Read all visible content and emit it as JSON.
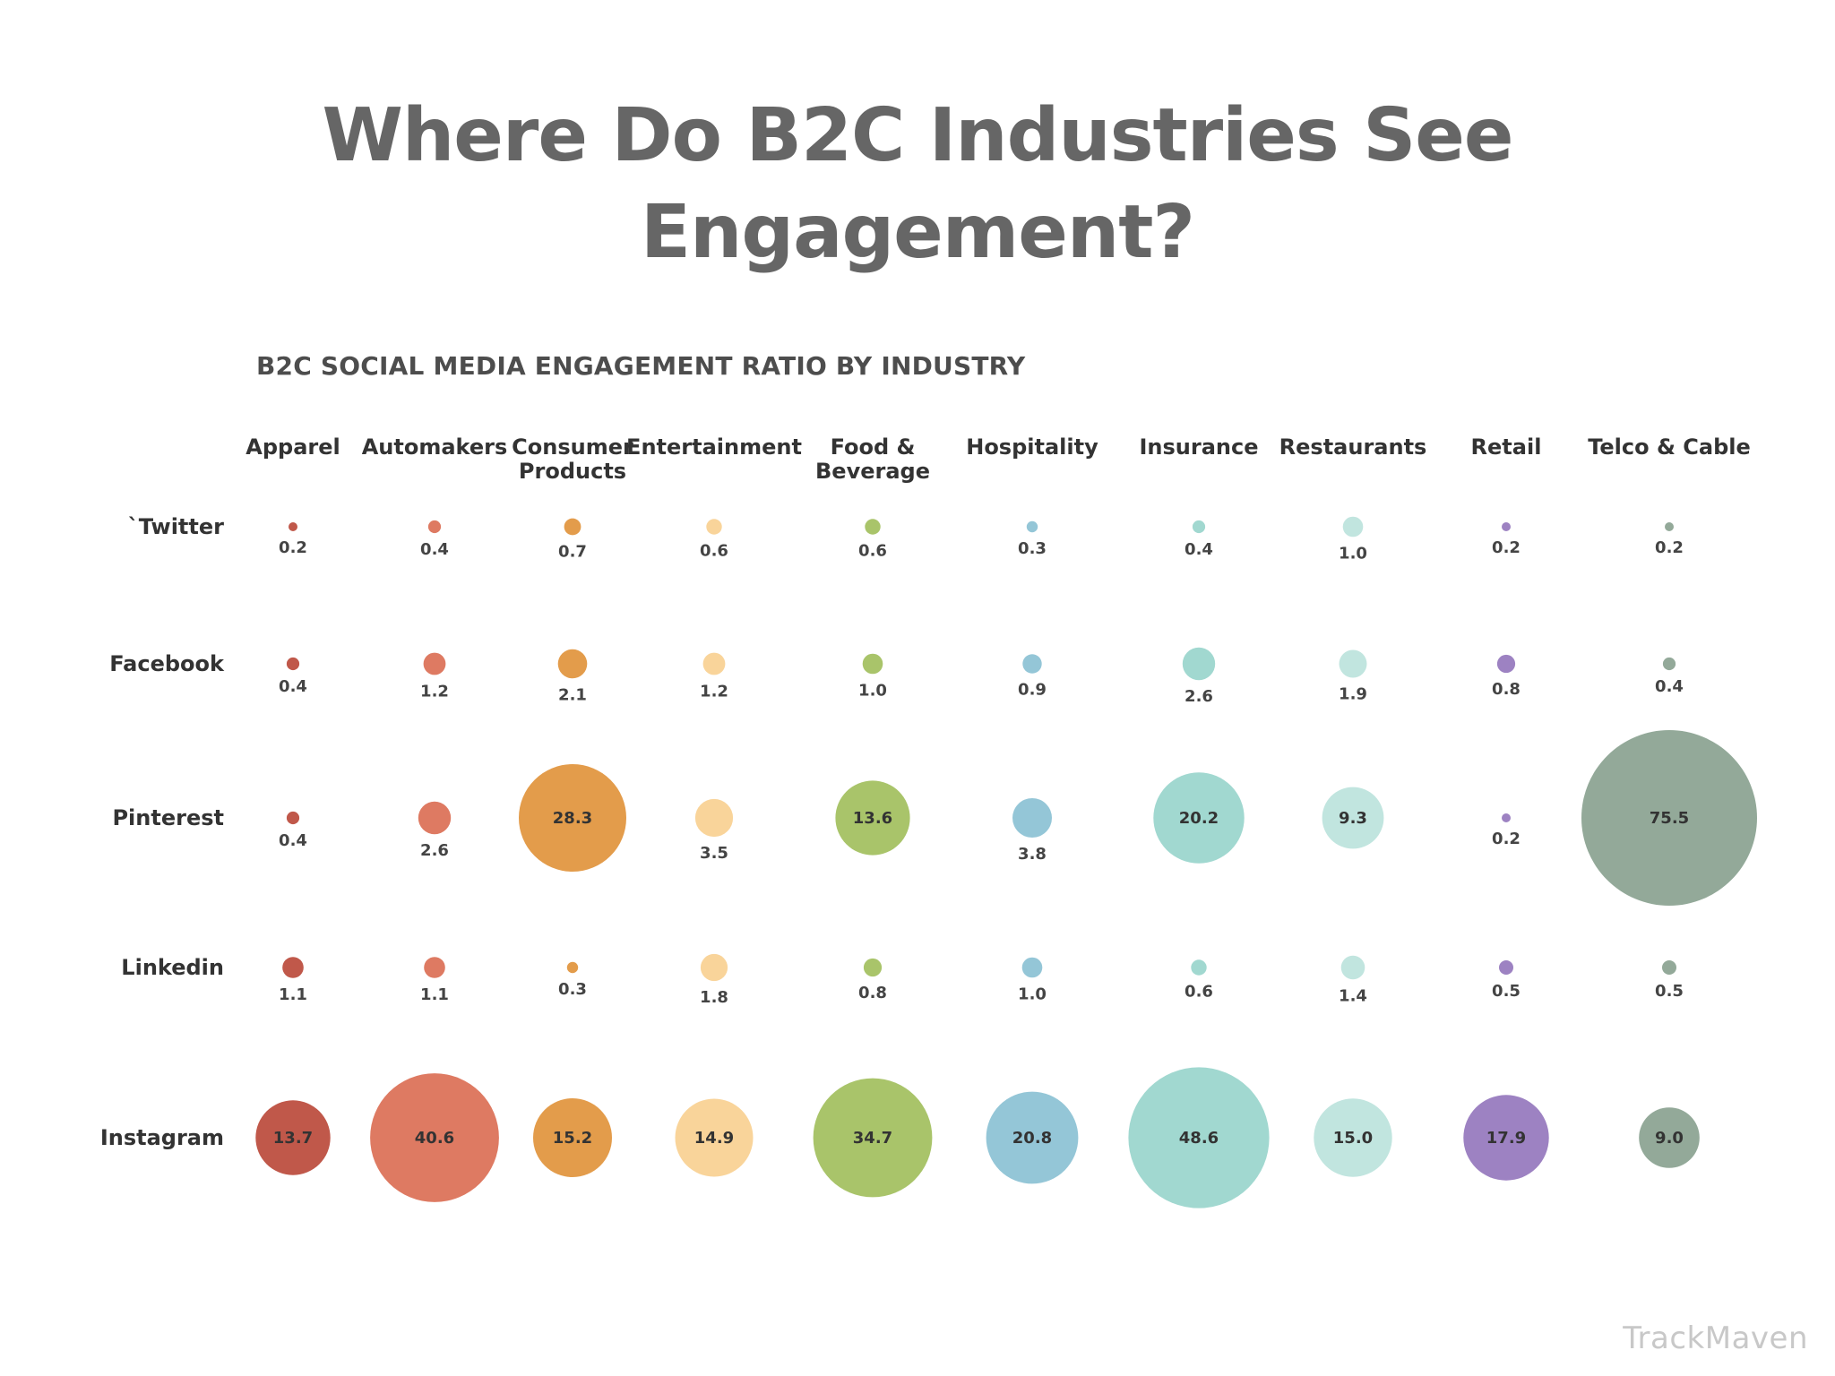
{
  "page": {
    "title_line1": "Where Do B2C Industries See",
    "title_line2": "Engagement?",
    "watermark": "TrackMaven"
  },
  "chart_data": {
    "type": "bubble-matrix",
    "title": "B2C SOCIAL MEDIA ENGAGEMENT RATIO BY INDUSTRY",
    "categories": [
      {
        "name": "Apparel",
        "lines": [
          "Apparel"
        ],
        "color": "#c0584a"
      },
      {
        "name": "Automakers",
        "lines": [
          "Automakers"
        ],
        "color": "#de7a62"
      },
      {
        "name": "Consumer Products",
        "lines": [
          "Consumer",
          "Products"
        ],
        "color": "#e39c4b"
      },
      {
        "name": "Entertainment",
        "lines": [
          "Entertainment"
        ],
        "color": "#f9d49a"
      },
      {
        "name": "Food & Beverage",
        "lines": [
          "Food &",
          "Beverage"
        ],
        "color": "#a9c46a"
      },
      {
        "name": "Hospitality",
        "lines": [
          "Hospitality"
        ],
        "color": "#94c6d7"
      },
      {
        "name": "Insurance",
        "lines": [
          "Insurance"
        ],
        "color": "#a1d8d0"
      },
      {
        "name": "Restaurants",
        "lines": [
          "Restaurants"
        ],
        "color": "#c1e5df"
      },
      {
        "name": "Retail",
        "lines": [
          "Retail"
        ],
        "color": "#9d82c2"
      },
      {
        "name": "Telco & Cable",
        "lines": [
          "Telco & Cable"
        ],
        "color": "#93a999"
      }
    ],
    "series": [
      {
        "name": "`Twitter",
        "values": [
          0.2,
          0.4,
          0.7,
          0.6,
          0.6,
          0.3,
          0.4,
          1.0,
          0.2,
          0.2
        ]
      },
      {
        "name": "Facebook",
        "values": [
          0.4,
          1.2,
          2.1,
          1.2,
          1.0,
          0.9,
          2.6,
          1.9,
          0.8,
          0.4
        ]
      },
      {
        "name": "Pinterest",
        "values": [
          0.4,
          2.6,
          28.3,
          3.5,
          13.6,
          3.8,
          20.2,
          9.3,
          0.2,
          75.5
        ]
      },
      {
        "name": "Linkedin",
        "values": [
          1.1,
          1.1,
          0.3,
          1.8,
          0.8,
          1.0,
          0.6,
          1.4,
          0.5,
          0.5
        ]
      },
      {
        "name": "Instagram",
        "values": [
          13.7,
          40.6,
          15.2,
          14.9,
          34.7,
          20.8,
          48.6,
          15.0,
          17.9,
          9.0
        ]
      }
    ],
    "value_label_position": "below small bubbles, inside large bubbles"
  }
}
